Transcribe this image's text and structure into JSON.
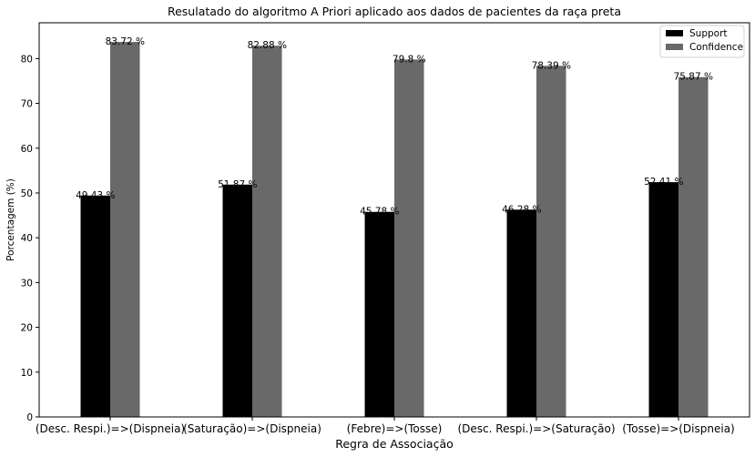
{
  "chart_data": {
    "type": "bar",
    "title": "Resulatado do algoritmo A Priori aplicado aos dados de pacientes da raça preta",
    "xlabel": "Regra de Associação",
    "ylabel": "Porcentagem (%)",
    "categories": [
      "(Desc. Respi.)=>(Dispneia)",
      "(Saturação)=>(Dispneia)",
      "(Febre)=>(Tosse)",
      "(Desc. Respi.)=>(Saturação)",
      "(Tosse)=>(Dispneia)"
    ],
    "series": [
      {
        "name": "Support",
        "color": "#000000",
        "values": [
          49.43,
          51.87,
          45.78,
          46.28,
          52.41
        ],
        "labels": [
          "49.43 %",
          "51.87 %",
          "45.78 %",
          "46.28 %",
          "52.41 %"
        ]
      },
      {
        "name": "Confidence",
        "color": "#696969",
        "values": [
          83.72,
          82.88,
          79.8,
          78.39,
          75.87
        ],
        "labels": [
          "83.72 %",
          "82.88 %",
          "79.8 %",
          "78.39 %",
          "75.87 %"
        ]
      }
    ],
    "ylim": [
      0,
      88
    ],
    "yticks": [
      0,
      10,
      20,
      30,
      40,
      50,
      60,
      70,
      80
    ],
    "grid": false,
    "legend_position": "top-right"
  }
}
